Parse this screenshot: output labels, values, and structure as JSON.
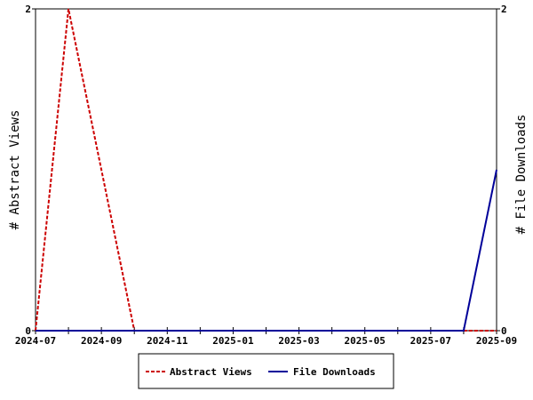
{
  "chart_data": {
    "type": "line",
    "title": "",
    "xlabel": "",
    "ylabel_left": "# Abstract Views",
    "ylabel_right": "# File Downloads",
    "x_tick_labels": [
      "2024-07",
      "2024-09",
      "2024-11",
      "2025-01",
      "2025-03",
      "2025-05",
      "2025-07",
      "2025-09"
    ],
    "x": [
      "2024-07",
      "2024-08",
      "2024-09",
      "2024-10",
      "2024-11",
      "2024-12",
      "2025-01",
      "2025-02",
      "2025-03",
      "2025-04",
      "2025-05",
      "2025-06",
      "2025-07",
      "2025-08",
      "2025-09"
    ],
    "y_left_lim": [
      0,
      2
    ],
    "y_left_ticks": [
      "0",
      "2"
    ],
    "y_right_lim": [
      0,
      2
    ],
    "y_right_ticks": [
      "0",
      "2"
    ],
    "series": [
      {
        "name": "Abstract Views",
        "axis": "left",
        "color": "#cc0000",
        "style": "dashed",
        "values": [
          0,
          2,
          1,
          0,
          0,
          0,
          0,
          0,
          0,
          0,
          0,
          0,
          0,
          0,
          0
        ]
      },
      {
        "name": "File Downloads",
        "axis": "right",
        "color": "#000099",
        "style": "solid",
        "values": [
          0,
          0,
          0,
          0,
          0,
          0,
          0,
          0,
          0,
          0,
          0,
          0,
          0,
          0,
          1
        ]
      }
    ],
    "grid": false,
    "legend_position": "bottom-center"
  }
}
